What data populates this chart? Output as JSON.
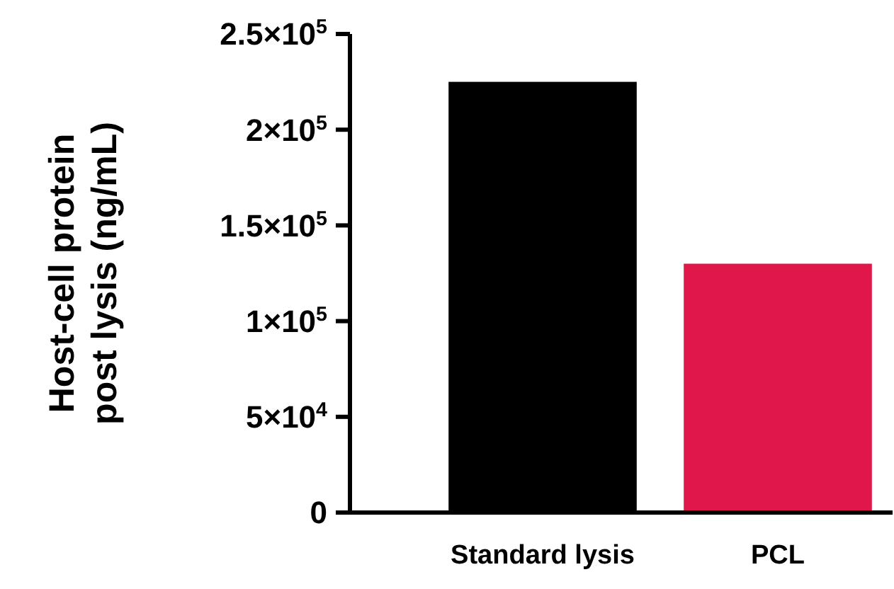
{
  "chart_data": {
    "type": "bar",
    "ylabel": "Host-cell protein\npost lysis (ng/mL)",
    "categories": [
      "Standard lysis",
      "PCL"
    ],
    "values": [
      225000,
      130000
    ],
    "colors": [
      "#000000",
      "#e0174a"
    ],
    "ylim": [
      0,
      250000
    ],
    "yticks": [
      0,
      {
        "value": 50000,
        "label": "5×10$^{4}$"
      },
      {
        "value": 100000,
        "label": "1×10$^{5}$"
      },
      {
        "value": 150000,
        "label": "1.5×10$^{5}$"
      },
      {
        "value": 200000,
        "label": "2×10$^{5}$"
      },
      {
        "value": 250000,
        "label": "2.5×10$^{5}$"
      }
    ]
  }
}
